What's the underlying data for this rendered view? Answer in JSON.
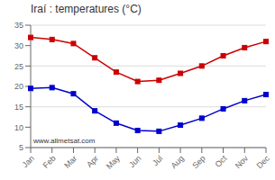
{
  "chart_data": {
    "type": "line",
    "title": "Iraí : temperatures (°C)",
    "categories": [
      "Jan",
      "Feb",
      "Mar",
      "Apr",
      "May",
      "Jun",
      "Jul",
      "Aug",
      "Sep",
      "Oct",
      "Nov",
      "Dec"
    ],
    "series": [
      {
        "color": "#cc0000",
        "marker": "square",
        "values": [
          32.0,
          31.5,
          30.5,
          27.0,
          23.5,
          21.2,
          21.5,
          23.2,
          25.0,
          27.5,
          29.5,
          31.0
        ]
      },
      {
        "color": "#0000cc",
        "marker": "square",
        "values": [
          19.5,
          19.7,
          18.2,
          14.0,
          11.0,
          9.2,
          9.0,
          10.5,
          12.2,
          14.5,
          16.5,
          18.0
        ]
      }
    ],
    "ylim": [
      5,
      35
    ],
    "yticks": [
      5,
      10,
      15,
      20,
      25,
      30,
      35
    ],
    "grid": true,
    "annotations": [
      "www.allmetsat.com"
    ]
  }
}
